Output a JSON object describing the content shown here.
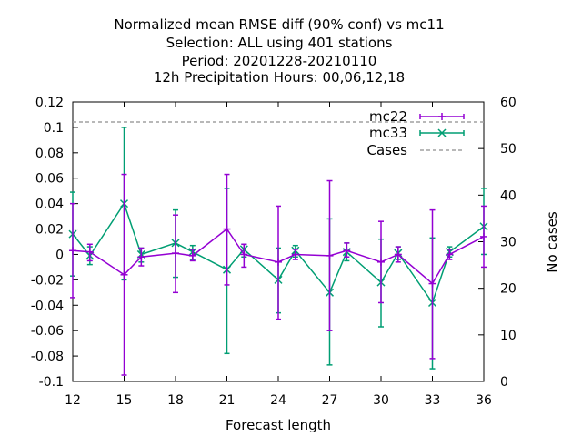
{
  "chart_data": {
    "type": "line",
    "title_lines": [
      "Normalized mean RMSE diff (90% conf) vs mc11",
      "Selection: ALL using   401 stations",
      "Period: 20201228-20210110",
      "12h Precipitation    Hours:  00,06,12,18"
    ],
    "xlabel": "Forecast length",
    "ylabel": "",
    "y2label": "No cases",
    "xlim": [
      12,
      36
    ],
    "ylim": [
      -0.1,
      0.12
    ],
    "y2lim": [
      0,
      60
    ],
    "x_ticks": [
      "12",
      "15",
      "18",
      "21",
      "24",
      "27",
      "30",
      "33",
      "36"
    ],
    "y_ticks": [
      "0.12",
      "0.1",
      "0.08",
      "0.06",
      "0.04",
      "0.02",
      "0",
      "-0.02",
      "-0.04",
      "-0.06",
      "-0.08",
      "-0.1"
    ],
    "y2_ticks": [
      "60",
      "50",
      "40",
      "30",
      "20",
      "10",
      "0"
    ],
    "legend_position": "top-right",
    "grid": false,
    "series": [
      {
        "name": "mc22",
        "color": "#9400d3",
        "marker": "plus",
        "x": [
          12,
          13,
          15,
          16,
          18,
          19,
          21,
          22,
          24,
          25,
          27,
          28,
          30,
          31,
          33,
          34,
          36
        ],
        "y": [
          0.003,
          0.002,
          -0.016,
          -0.002,
          0.001,
          -0.001,
          0.02,
          0.0,
          -0.006,
          0.0,
          -0.001,
          0.003,
          -0.006,
          0.0,
          -0.023,
          0.0,
          0.014
        ],
        "ylow": [
          -0.034,
          -0.005,
          -0.095,
          -0.009,
          -0.03,
          -0.005,
          -0.024,
          -0.01,
          -0.051,
          -0.004,
          -0.06,
          -0.002,
          -0.038,
          -0.006,
          -0.082,
          -0.004,
          -0.01
        ],
        "yhigh": [
          0.04,
          0.008,
          0.063,
          0.005,
          0.031,
          0.004,
          0.063,
          0.008,
          0.038,
          0.004,
          0.058,
          0.009,
          0.026,
          0.006,
          0.035,
          0.004,
          0.038
        ]
      },
      {
        "name": "mc33",
        "color": "#009e73",
        "marker": "cross",
        "x": [
          12,
          13,
          15,
          16,
          18,
          19,
          21,
          22,
          24,
          25,
          27,
          28,
          30,
          31,
          33,
          34,
          36
        ],
        "y": [
          0.016,
          -0.001,
          0.04,
          0.0,
          0.009,
          0.002,
          -0.012,
          0.004,
          -0.02,
          0.003,
          -0.03,
          0.002,
          -0.022,
          0.001,
          -0.038,
          0.002,
          0.022
        ],
        "ylow": [
          -0.017,
          -0.008,
          -0.02,
          -0.006,
          -0.018,
          -0.004,
          -0.078,
          -0.002,
          -0.046,
          -0.002,
          -0.087,
          -0.005,
          -0.057,
          -0.004,
          -0.09,
          -0.002,
          0.0
        ],
        "yhigh": [
          0.049,
          0.006,
          0.1,
          0.005,
          0.035,
          0.007,
          0.052,
          0.008,
          0.005,
          0.007,
          0.028,
          0.009,
          0.012,
          0.006,
          0.013,
          0.006,
          0.052
        ]
      },
      {
        "name": "Cases",
        "color": "#a0a0a0",
        "axis": "y2",
        "dashed": true,
        "constant": 55.7
      }
    ]
  }
}
